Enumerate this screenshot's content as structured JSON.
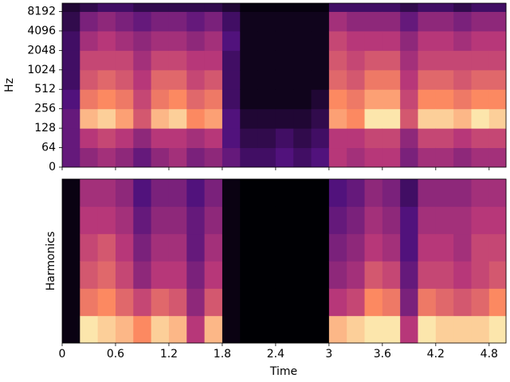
{
  "chart_data": [
    {
      "type": "heatmap",
      "ylabel": "Hz",
      "yscale": "symlog",
      "linthresh": 64,
      "colormap": "magma",
      "xlim": [
        0,
        4.99
      ],
      "xticks": [
        0,
        0.6,
        1.2,
        1.8,
        2.4,
        3,
        3.6,
        4.2,
        4.8
      ],
      "show_xtick_labels": false,
      "ylim": [
        0,
        11025
      ],
      "yticks": [
        0,
        64,
        128,
        256,
        512,
        1024,
        2048,
        4096,
        8192
      ],
      "time_bins": [
        0,
        0.2,
        0.4,
        0.6,
        0.8,
        1,
        1.2,
        1.4,
        1.6,
        1.8,
        2,
        2.2,
        2.4,
        2.6,
        2.8,
        3,
        3.2,
        3.4,
        3.6,
        3.8,
        4,
        4.2,
        4.4,
        4.6,
        4.8,
        4.99
      ],
      "freq_bins": [
        0,
        64,
        128,
        256,
        512,
        1024,
        2048,
        4096,
        8192,
        11025
      ],
      "z": [
        [
          0.3,
          0.3,
          0.3,
          0.25,
          0.2,
          0.2,
          0.2,
          0.15,
          0.1
        ],
        [
          0.4,
          0.5,
          0.85,
          0.7,
          0.6,
          0.55,
          0.45,
          0.35,
          0.15
        ],
        [
          0.45,
          0.55,
          0.9,
          0.75,
          0.65,
          0.55,
          0.5,
          0.4,
          0.2
        ],
        [
          0.4,
          0.5,
          0.8,
          0.7,
          0.6,
          0.55,
          0.45,
          0.35,
          0.2
        ],
        [
          0.3,
          0.4,
          0.6,
          0.55,
          0.5,
          0.45,
          0.4,
          0.3,
          0.15
        ],
        [
          0.4,
          0.5,
          0.85,
          0.7,
          0.65,
          0.55,
          0.45,
          0.35,
          0.15
        ],
        [
          0.45,
          0.5,
          0.9,
          0.75,
          0.65,
          0.55,
          0.45,
          0.35,
          0.15
        ],
        [
          0.35,
          0.45,
          0.75,
          0.65,
          0.55,
          0.5,
          0.4,
          0.3,
          0.15
        ],
        [
          0.4,
          0.5,
          0.8,
          0.7,
          0.6,
          0.5,
          0.45,
          0.35,
          0.15
        ],
        [
          0.3,
          0.25,
          0.25,
          0.2,
          0.2,
          0.2,
          0.25,
          0.2,
          0.1
        ],
        [
          0.2,
          0.15,
          0.1,
          0.05,
          0.05,
          0.05,
          0.05,
          0.05,
          0.02
        ],
        [
          0.2,
          0.15,
          0.1,
          0.05,
          0.05,
          0.05,
          0.05,
          0.05,
          0.02
        ],
        [
          0.25,
          0.2,
          0.1,
          0.05,
          0.05,
          0.05,
          0.05,
          0.05,
          0.02
        ],
        [
          0.2,
          0.15,
          0.1,
          0.05,
          0.05,
          0.05,
          0.05,
          0.05,
          0.02
        ],
        [
          0.25,
          0.2,
          0.15,
          0.1,
          0.05,
          0.05,
          0.05,
          0.05,
          0.02
        ],
        [
          0.5,
          0.5,
          0.8,
          0.75,
          0.65,
          0.6,
          0.55,
          0.45,
          0.2
        ],
        [
          0.45,
          0.5,
          0.75,
          0.7,
          0.6,
          0.55,
          0.5,
          0.4,
          0.2
        ],
        [
          0.5,
          0.55,
          0.95,
          0.8,
          0.7,
          0.6,
          0.5,
          0.4,
          0.2
        ],
        [
          0.5,
          0.55,
          0.95,
          0.8,
          0.7,
          0.6,
          0.5,
          0.4,
          0.2
        ],
        [
          0.35,
          0.4,
          0.6,
          0.55,
          0.5,
          0.45,
          0.4,
          0.3,
          0.15
        ],
        [
          0.45,
          0.55,
          0.9,
          0.75,
          0.65,
          0.55,
          0.5,
          0.4,
          0.2
        ],
        [
          0.45,
          0.55,
          0.9,
          0.75,
          0.65,
          0.55,
          0.5,
          0.4,
          0.2
        ],
        [
          0.4,
          0.5,
          0.85,
          0.7,
          0.6,
          0.55,
          0.45,
          0.35,
          0.15
        ],
        [
          0.45,
          0.55,
          0.95,
          0.75,
          0.65,
          0.55,
          0.5,
          0.4,
          0.2
        ],
        [
          0.45,
          0.55,
          0.9,
          0.75,
          0.65,
          0.55,
          0.5,
          0.4,
          0.2
        ]
      ]
    },
    {
      "type": "heatmap",
      "ylabel": "Harmonics",
      "xlabel": "Time",
      "colormap": "magma",
      "xlim": [
        0,
        4.99
      ],
      "xticks": [
        0,
        0.6,
        1.2,
        1.8,
        2.4,
        3,
        3.6,
        4.2,
        4.8
      ],
      "show_xtick_labels": true,
      "time_bins": [
        0,
        0.2,
        0.4,
        0.6,
        0.8,
        1,
        1.2,
        1.4,
        1.6,
        1.8,
        2,
        2.2,
        2.4,
        2.6,
        2.8,
        3,
        3.2,
        3.4,
        3.6,
        3.8,
        4,
        4.2,
        4.4,
        4.6,
        4.8,
        4.99
      ],
      "z": [
        [
          0.03,
          0.03,
          0.03,
          0.03,
          0.03,
          0.03
        ],
        [
          0.95,
          0.7,
          0.6,
          0.55,
          0.5,
          0.45
        ],
        [
          0.9,
          0.75,
          0.65,
          0.6,
          0.5,
          0.45
        ],
        [
          0.85,
          0.65,
          0.55,
          0.5,
          0.45,
          0.4
        ],
        [
          0.75,
          0.55,
          0.4,
          0.35,
          0.3,
          0.25
        ],
        [
          0.9,
          0.65,
          0.5,
          0.45,
          0.4,
          0.35
        ],
        [
          0.85,
          0.6,
          0.5,
          0.45,
          0.4,
          0.35
        ],
        [
          0.5,
          0.4,
          0.35,
          0.3,
          0.3,
          0.25
        ],
        [
          0.85,
          0.6,
          0.5,
          0.45,
          0.4,
          0.35
        ],
        [
          0.03,
          0.03,
          0.03,
          0.03,
          0.03,
          0.03
        ],
        [
          0,
          0,
          0,
          0,
          0,
          0
        ],
        [
          0,
          0,
          0,
          0,
          0,
          0
        ],
        [
          0,
          0,
          0,
          0,
          0,
          0
        ],
        [
          0,
          0,
          0,
          0,
          0,
          0
        ],
        [
          0,
          0,
          0,
          0,
          0,
          0
        ],
        [
          0.85,
          0.5,
          0.4,
          0.35,
          0.3,
          0.25
        ],
        [
          0.9,
          0.55,
          0.45,
          0.4,
          0.35,
          0.3
        ],
        [
          0.95,
          0.75,
          0.6,
          0.5,
          0.45,
          0.4
        ],
        [
          0.95,
          0.7,
          0.55,
          0.45,
          0.4,
          0.35
        ],
        [
          0.5,
          0.35,
          0.3,
          0.25,
          0.25,
          0.2
        ],
        [
          0.95,
          0.7,
          0.55,
          0.5,
          0.45,
          0.4
        ],
        [
          0.9,
          0.65,
          0.55,
          0.5,
          0.45,
          0.4
        ],
        [
          0.9,
          0.6,
          0.5,
          0.45,
          0.45,
          0.4
        ],
        [
          0.9,
          0.65,
          0.55,
          0.55,
          0.5,
          0.45
        ],
        [
          0.95,
          0.75,
          0.6,
          0.55,
          0.5,
          0.45
        ]
      ]
    }
  ]
}
